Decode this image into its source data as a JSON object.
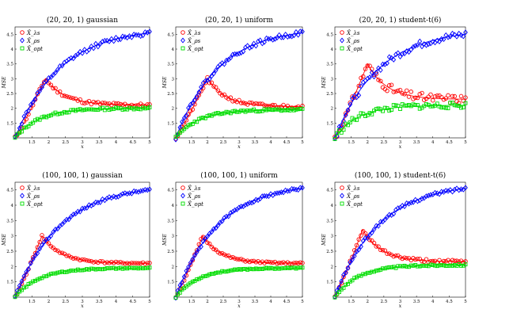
{
  "figure": {
    "background": "#ffffff"
  },
  "chart_data": [
    {
      "type": "scatter",
      "title": "(20, 20, 1) gaussian",
      "xlabel": "x",
      "ylabel": "MSE",
      "xlim": [
        1,
        5
      ],
      "ylim": [
        1,
        4.75
      ],
      "xticks": [
        "1.5",
        "2",
        "2.5",
        "3",
        "3.5",
        "4",
        "4.5",
        "5"
      ],
      "yticks": [
        "1.5",
        "2",
        "2.5",
        "3",
        "3.5",
        "4",
        "4.5"
      ],
      "legend_position": "top-left",
      "series": [
        {
          "name": "X̂_λs",
          "color": "#ff0000",
          "marker": "circle",
          "kind": "peak",
          "peak_x": 1.9,
          "peak_y": 3.0,
          "plateau": 2.1,
          "noise": 0.06,
          "seed": 11
        },
        {
          "name": "X̂_ρs",
          "color": "#0000ff",
          "marker": "diamond",
          "kind": "rise",
          "final": 4.55,
          "noise": 0.07,
          "seed": 12
        },
        {
          "name": "X̂_opt",
          "color": "#00dd00",
          "marker": "square",
          "kind": "flat",
          "final": 2.0,
          "noise": 0.04,
          "seed": 13
        }
      ]
    },
    {
      "type": "scatter",
      "title": "(20, 20, 1) uniform",
      "xlabel": "x",
      "ylabel": "MSE",
      "xlim": [
        1,
        5
      ],
      "ylim": [
        1,
        4.75
      ],
      "xticks": [
        "1.5",
        "2",
        "2.5",
        "3",
        "3.5",
        "4",
        "4.5",
        "5"
      ],
      "yticks": [
        "1.5",
        "2",
        "2.5",
        "3",
        "3.5",
        "4",
        "4.5"
      ],
      "legend_position": "top-left",
      "series": [
        {
          "name": "X̂_λs",
          "color": "#ff0000",
          "marker": "circle",
          "kind": "peak",
          "peak_x": 2.0,
          "peak_y": 3.0,
          "plateau": 2.05,
          "noise": 0.06,
          "seed": 21
        },
        {
          "name": "X̂_ρs",
          "color": "#0000ff",
          "marker": "diamond",
          "kind": "rise",
          "final": 4.55,
          "noise": 0.07,
          "seed": 22
        },
        {
          "name": "X̂_opt",
          "color": "#00dd00",
          "marker": "square",
          "kind": "flat",
          "final": 1.95,
          "noise": 0.04,
          "seed": 23
        }
      ]
    },
    {
      "type": "scatter",
      "title": "(20, 20, 1) student-t(6)",
      "xlabel": "x",
      "ylabel": "MSE",
      "xlim": [
        1,
        5
      ],
      "ylim": [
        1,
        4.75
      ],
      "xticks": [
        "1.5",
        "2",
        "2.5",
        "3",
        "3.5",
        "4",
        "4.5",
        "5"
      ],
      "yticks": [
        "1.5",
        "2",
        "2.5",
        "3",
        "3.5",
        "4",
        "4.5"
      ],
      "legend_position": "top-left",
      "series": [
        {
          "name": "X̂_λs",
          "color": "#ff0000",
          "marker": "circle",
          "kind": "peak",
          "peak_x": 2.0,
          "peak_y": 3.5,
          "plateau": 2.3,
          "noise": 0.15,
          "seed": 31
        },
        {
          "name": "X̂_ρs",
          "color": "#0000ff",
          "marker": "diamond",
          "kind": "rise",
          "final": 4.5,
          "noise": 0.12,
          "seed": 32
        },
        {
          "name": "X̂_opt",
          "color": "#00dd00",
          "marker": "square",
          "kind": "flat",
          "final": 2.1,
          "noise": 0.1,
          "seed": 33
        }
      ]
    },
    {
      "type": "scatter",
      "title": "(100, 100, 1) gaussian",
      "xlabel": "x",
      "ylabel": "MSE",
      "xlim": [
        1,
        5
      ],
      "ylim": [
        1,
        4.75
      ],
      "xticks": [
        "1.5",
        "2",
        "2.5",
        "3",
        "3.5",
        "4",
        "4.5",
        "5"
      ],
      "yticks": [
        "1.5",
        "2",
        "2.5",
        "3",
        "3.5",
        "4",
        "4.5"
      ],
      "legend_position": "top-left",
      "series": [
        {
          "name": "X̂_λs",
          "color": "#ff0000",
          "marker": "circle",
          "kind": "peak",
          "peak_x": 1.8,
          "peak_y": 3.0,
          "plateau": 2.1,
          "noise": 0.03,
          "seed": 41
        },
        {
          "name": "X̂_ρs",
          "color": "#0000ff",
          "marker": "diamond",
          "kind": "rise",
          "final": 4.5,
          "noise": 0.04,
          "seed": 42
        },
        {
          "name": "X̂_opt",
          "color": "#00dd00",
          "marker": "square",
          "kind": "flat",
          "final": 1.95,
          "noise": 0.02,
          "seed": 43
        }
      ]
    },
    {
      "type": "scatter",
      "title": "(100, 100, 1) uniform",
      "xlabel": "x",
      "ylabel": "MSE",
      "xlim": [
        1,
        5
      ],
      "ylim": [
        1,
        4.75
      ],
      "xticks": [
        "1.5",
        "2",
        "2.5",
        "3",
        "3.5",
        "4",
        "4.5",
        "5"
      ],
      "yticks": [
        "1.5",
        "2",
        "2.5",
        "3",
        "3.5",
        "4",
        "4.5"
      ],
      "legend_position": "top-left",
      "series": [
        {
          "name": "X̂_λs",
          "color": "#ff0000",
          "marker": "circle",
          "kind": "peak",
          "peak_x": 1.85,
          "peak_y": 3.0,
          "plateau": 2.1,
          "noise": 0.03,
          "seed": 51
        },
        {
          "name": "X̂_ρs",
          "color": "#0000ff",
          "marker": "diamond",
          "kind": "rise",
          "final": 4.55,
          "noise": 0.04,
          "seed": 52
        },
        {
          "name": "X̂_opt",
          "color": "#00dd00",
          "marker": "square",
          "kind": "flat",
          "final": 1.95,
          "noise": 0.02,
          "seed": 53
        }
      ]
    },
    {
      "type": "scatter",
      "title": "(100, 100, 1) student-t(6)",
      "xlabel": "x",
      "ylabel": "MSE",
      "xlim": [
        1,
        5
      ],
      "ylim": [
        1,
        4.75
      ],
      "xticks": [
        "1.5",
        "2",
        "2.5",
        "3",
        "3.5",
        "4",
        "4.5",
        "5"
      ],
      "yticks": [
        "1.5",
        "2",
        "2.5",
        "3",
        "3.5",
        "4",
        "4.5"
      ],
      "legend_position": "top-left",
      "series": [
        {
          "name": "X̂_λs",
          "color": "#ff0000",
          "marker": "circle",
          "kind": "peak",
          "peak_x": 1.85,
          "peak_y": 3.2,
          "plateau": 2.15,
          "noise": 0.05,
          "seed": 61
        },
        {
          "name": "X̂_ρs",
          "color": "#0000ff",
          "marker": "diamond",
          "kind": "rise",
          "final": 4.55,
          "noise": 0.05,
          "seed": 62
        },
        {
          "name": "X̂_opt",
          "color": "#00dd00",
          "marker": "square",
          "kind": "flat",
          "final": 2.05,
          "noise": 0.03,
          "seed": 63
        }
      ]
    }
  ]
}
